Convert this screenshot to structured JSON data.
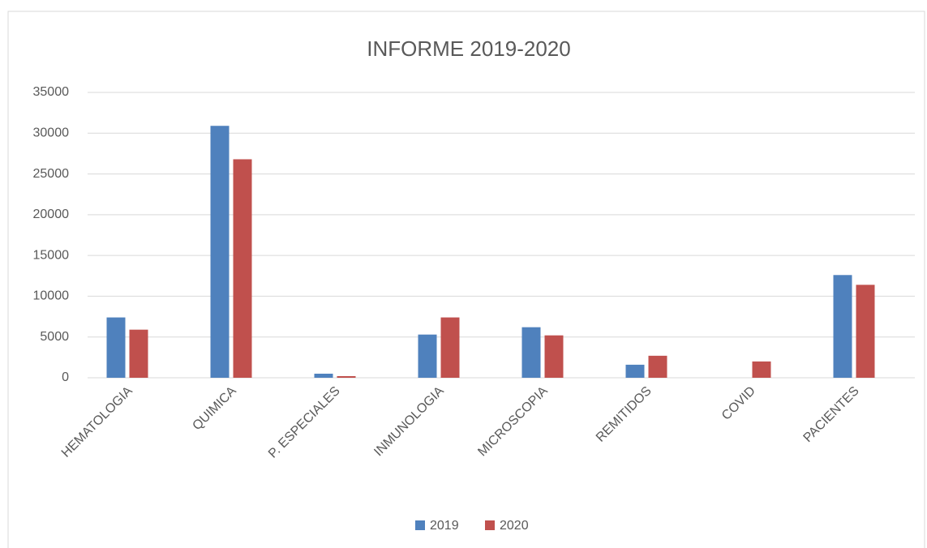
{
  "chart_data": {
    "type": "bar",
    "title": "INFORME 2019-2020",
    "categories": [
      "HEMATOLOGIA",
      "QUIMICA",
      "P. ESPECIALES",
      "INMUNOLOGIA",
      "MICROSCOPIA",
      "REMITIDOS",
      "COVID",
      "PACIENTES"
    ],
    "series": [
      {
        "name": "2019",
        "color": "#4f81bd",
        "values": [
          7400,
          30900,
          500,
          5300,
          6200,
          1600,
          0,
          12600
        ]
      },
      {
        "name": "2020",
        "color": "#c0504d",
        "values": [
          5900,
          26800,
          200,
          7400,
          5200,
          2700,
          2000,
          11400
        ]
      }
    ],
    "ylim": [
      0,
      35000
    ],
    "yticks": [
      0,
      5000,
      10000,
      15000,
      20000,
      25000,
      30000,
      35000
    ],
    "grid": true,
    "legend": "bottom"
  }
}
